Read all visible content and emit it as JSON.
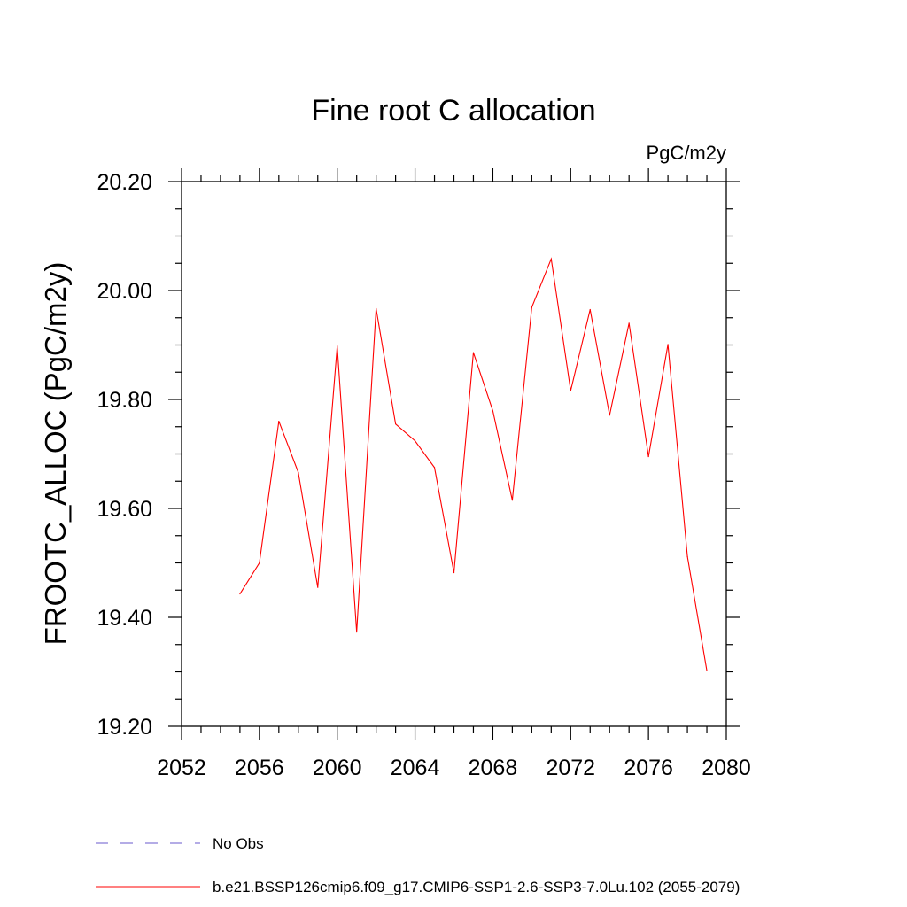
{
  "chart_data": {
    "type": "line",
    "title": "Fine root C allocation",
    "units": "PgC/m2y",
    "ylabel": "FROOTC_ALLOC  (PgC/m2y)",
    "xlabel": "",
    "xlim": [
      2052,
      2080
    ],
    "ylim": [
      19.2,
      20.2
    ],
    "x_ticks": [
      2052,
      2056,
      2060,
      2064,
      2068,
      2072,
      2076,
      2080
    ],
    "x_tick_labels": [
      "2052",
      "2056",
      "2060",
      "2064",
      "2068",
      "2072",
      "2076",
      "2080"
    ],
    "y_ticks": [
      19.2,
      19.4,
      19.6,
      19.8,
      20.0,
      20.2
    ],
    "y_tick_labels": [
      "19.20",
      "19.40",
      "19.60",
      "19.80",
      "20.00",
      "20.20"
    ],
    "grid": false,
    "legend_placement": "bottom-left",
    "series": [
      {
        "name": "b.e21.BSSP126cmip6.f09_g17.CMIP6-SSP1-2.6-SSP3-7.0Lu.102 (2055-2079)",
        "color": "#ff0000",
        "style": "solid",
        "x": [
          2055,
          2056,
          2057,
          2058,
          2059,
          2060,
          2061,
          2062,
          2063,
          2064,
          2065,
          2066,
          2067,
          2068,
          2069,
          2070,
          2071,
          2072,
          2073,
          2074,
          2075,
          2076,
          2077,
          2078,
          2079
        ],
        "y": [
          19.443,
          19.5,
          19.76,
          19.666,
          19.455,
          19.898,
          19.373,
          19.967,
          19.755,
          19.724,
          19.675,
          19.482,
          19.886,
          19.779,
          19.615,
          19.969,
          20.058,
          19.816,
          19.965,
          19.771,
          19.94,
          19.695,
          19.901,
          19.512,
          19.302
        ]
      }
    ],
    "legend": [
      {
        "label": "No Obs",
        "color": "#6a5acd",
        "style": "dashed"
      },
      {
        "label": "b.e21.BSSP126cmip6.f09_g17.CMIP6-SSP1-2.6-SSP3-7.0Lu.102 (2055-2079)",
        "color": "#ff0000",
        "style": "solid"
      }
    ]
  }
}
